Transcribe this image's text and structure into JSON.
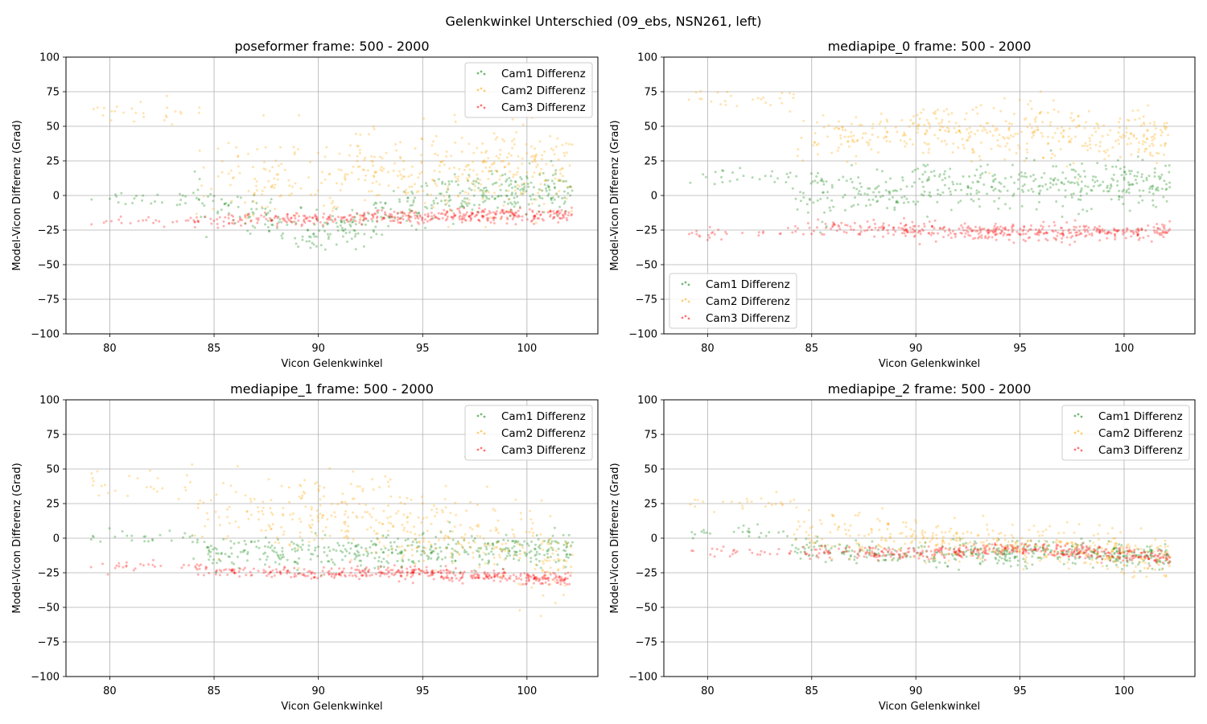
{
  "figure": {
    "suptitle": "Gelenkwinkel Unterschied (09_ebs, NSN261, left)"
  },
  "chart_data": [
    {
      "type": "scatter",
      "title": "poseformer frame: 500 - 2000",
      "xlabel": "Vicon Gelenkwinkel",
      "ylabel": "Model-Vicon Differenz (Grad)",
      "xlim": [
        77.9,
        103.4
      ],
      "ylim": [
        -100,
        100
      ],
      "xticks": [
        80,
        85,
        90,
        95,
        100
      ],
      "yticks": [
        -100,
        -75,
        -50,
        -25,
        0,
        25,
        50,
        75,
        100
      ],
      "grid": true,
      "legend_position": "upper right",
      "series": [
        {
          "name": "Cam1 Differenz",
          "color": "#008000",
          "center": [
            -2,
            -30,
            0,
            5
          ],
          "spread": 12,
          "sparse_center": -2
        },
        {
          "name": "Cam2 Differenz",
          "color": "#FFA500",
          "center": [
            14,
            10,
            20,
            20
          ],
          "spread": 25,
          "sparse_center": 60
        },
        {
          "name": "Cam3 Differenz",
          "color": "#FF0000",
          "center": [
            -18,
            -17,
            -15,
            -14
          ],
          "spread": 4,
          "sparse_center": -19
        }
      ]
    },
    {
      "type": "scatter",
      "title": "mediapipe_0 frame: 500 - 2000",
      "xlabel": "Vicon Gelenkwinkel",
      "ylabel": "Model-Vicon Differenz (Grad)",
      "xlim": [
        77.9,
        103.4
      ],
      "ylim": [
        -100,
        100
      ],
      "xticks": [
        80,
        85,
        90,
        95,
        100
      ],
      "yticks": [
        -100,
        -75,
        -50,
        -25,
        0,
        25,
        50,
        75,
        100
      ],
      "grid": true,
      "legend_position": "lower left",
      "series": [
        {
          "name": "Cam1 Differenz",
          "color": "#008000",
          "center": [
            0,
            5,
            10,
            5
          ],
          "spread": 14,
          "sparse_center": 12
        },
        {
          "name": "Cam2 Differenz",
          "color": "#FFA500",
          "center": [
            40,
            45,
            45,
            40
          ],
          "spread": 16,
          "sparse_center": 70
        },
        {
          "name": "Cam3 Differenz",
          "color": "#FF0000",
          "center": [
            -22,
            -25,
            -27,
            -25
          ],
          "spread": 5,
          "sparse_center": -27
        }
      ]
    },
    {
      "type": "scatter",
      "title": "mediapipe_1 frame: 500 - 2000",
      "xlabel": "Vicon Gelenkwinkel",
      "ylabel": "Model-Vicon Differenz (Grad)",
      "xlim": [
        77.9,
        103.4
      ],
      "ylim": [
        -100,
        100
      ],
      "xticks": [
        80,
        85,
        90,
        95,
        100
      ],
      "yticks": [
        -100,
        -75,
        -50,
        -25,
        0,
        25,
        50,
        75,
        100
      ],
      "grid": true,
      "legend_position": "upper right",
      "series": [
        {
          "name": "Cam1 Differenz",
          "color": "#008000",
          "center": [
            -12,
            -10,
            -10,
            -8
          ],
          "spread": 10,
          "sparse_center": 1
        },
        {
          "name": "Cam2 Differenz",
          "color": "#FFA500",
          "center": [
            20,
            15,
            5,
            -15
          ],
          "spread": 25,
          "sparse_center": 40
        },
        {
          "name": "Cam3 Differenz",
          "color": "#FF0000",
          "center": [
            -23,
            -25,
            -26,
            -30
          ],
          "spread": 4,
          "sparse_center": -20
        }
      ]
    },
    {
      "type": "scatter",
      "title": "mediapipe_2 frame: 500 - 2000",
      "xlabel": "Vicon Gelenkwinkel",
      "ylabel": "Model-Vicon Differenz (Grad)",
      "xlim": [
        77.9,
        103.4
      ],
      "ylim": [
        -100,
        100
      ],
      "xticks": [
        80,
        85,
        90,
        95,
        100
      ],
      "yticks": [
        -100,
        -75,
        -50,
        -25,
        0,
        25,
        50,
        75,
        100
      ],
      "grid": true,
      "legend_position": "upper right",
      "series": [
        {
          "name": "Cam1 Differenz",
          "color": "#008000",
          "center": [
            -8,
            -12,
            -10,
            -14
          ],
          "spread": 7,
          "sparse_center": 4
        },
        {
          "name": "Cam2 Differenz",
          "color": "#FFA500",
          "center": [
            5,
            0,
            -5,
            -15
          ],
          "spread": 12,
          "sparse_center": 25
        },
        {
          "name": "Cam3 Differenz",
          "color": "#FF0000",
          "center": [
            -10,
            -11,
            -8,
            -14
          ],
          "spread": 4,
          "sparse_center": -10
        }
      ]
    }
  ]
}
